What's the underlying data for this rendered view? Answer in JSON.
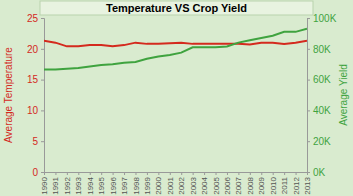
{
  "chart_data": {
    "type": "line",
    "title": "Temperature VS Crop Yield",
    "categories": [
      "1990",
      "1991",
      "1992",
      "1993",
      "1994",
      "1995",
      "1996",
      "1997",
      "1998",
      "1999",
      "2000",
      "2001",
      "2002",
      "2003",
      "2004",
      "2005",
      "2006",
      "2007",
      "2008",
      "2009",
      "2010",
      "2011",
      "2012",
      "2013"
    ],
    "series": [
      {
        "name": "Average Temperature",
        "color": "#d42a1e",
        "values": [
          21.3,
          21.0,
          20.4,
          20.4,
          20.6,
          20.6,
          20.4,
          20.6,
          21.0,
          20.8,
          20.8,
          20.9,
          21.0,
          20.8,
          20.8,
          20.8,
          20.8,
          20.8,
          20.7,
          21.0,
          21.0,
          20.8,
          21.0,
          21.3
        ]
      },
      {
        "name": "Average Yield",
        "color": "#3fa33f",
        "axis": "y2",
        "values": [
          66500,
          66500,
          67000,
          67500,
          68500,
          69500,
          70000,
          71000,
          71500,
          73500,
          75000,
          76000,
          77500,
          81000,
          81000,
          81000,
          81500,
          84000,
          85500,
          87000,
          88500,
          91000,
          91000,
          93000
        ]
      }
    ],
    "ylim": [
      0,
      25
    ],
    "yticks": [
      0,
      5,
      10,
      15,
      20,
      25
    ],
    "y2lim": [
      0,
      100000
    ],
    "y2ticks": [
      {
        "value": 0,
        "label": "0K"
      },
      {
        "value": 20000,
        "label": "20K"
      },
      {
        "value": 40000,
        "label": "40K"
      },
      {
        "value": 60000,
        "label": "60K"
      },
      {
        "value": 80000,
        "label": "80K"
      },
      {
        "value": 100000,
        "label": "100K"
      }
    ],
    "grid": false
  }
}
